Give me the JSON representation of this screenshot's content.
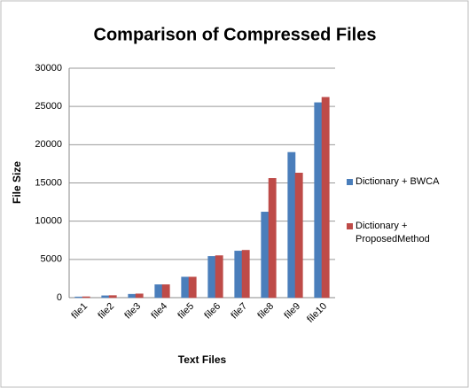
{
  "chart_data": {
    "type": "bar",
    "title": "Comparison of Compressed Files",
    "x_label": "Text Files",
    "y_label": "File Size",
    "categories": [
      "file1",
      "file2",
      "file3",
      "file4",
      "file5",
      "file6",
      "file7",
      "file8",
      "file9",
      "file10"
    ],
    "series": [
      {
        "name": "Dictionary + BWCA",
        "color": "#4a7ebb",
        "values": [
          100,
          250,
          450,
          1700,
          2700,
          5400,
          6100,
          11200,
          19000,
          25500
        ]
      },
      {
        "name": "Dictionary + ProposedMethod",
        "color": "#be4b48",
        "values": [
          120,
          280,
          500,
          1700,
          2700,
          5500,
          6200,
          15600,
          16300,
          26200
        ]
      }
    ],
    "ylim": [
      0,
      30000
    ],
    "yticks": [
      0,
      5000,
      10000,
      15000,
      20000,
      25000,
      30000
    ],
    "grid": true,
    "legend": "right"
  }
}
